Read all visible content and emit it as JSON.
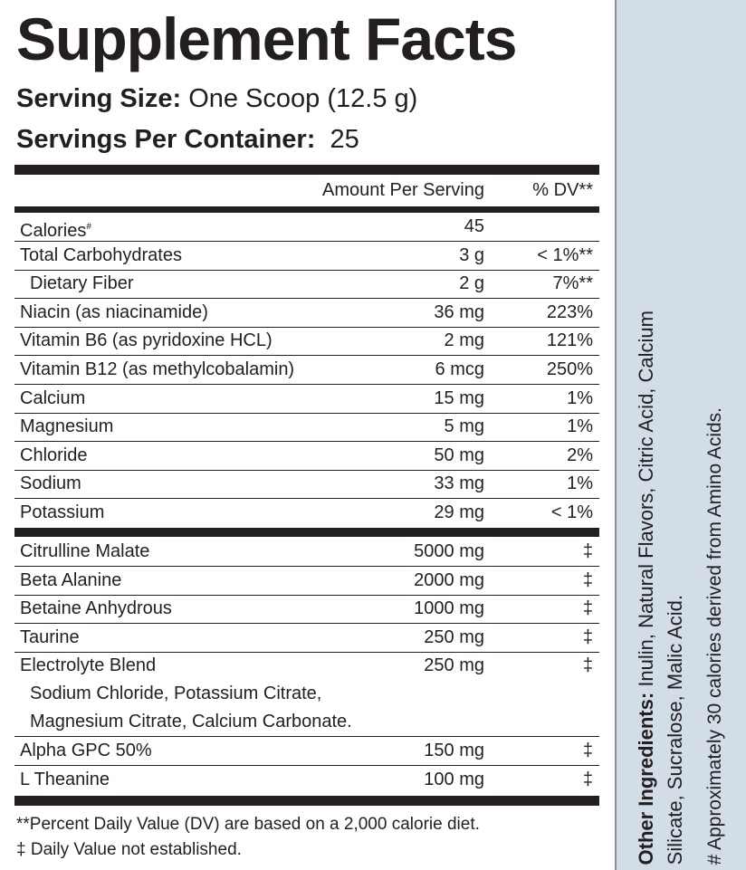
{
  "title": "Supplement Facts",
  "serving_size": {
    "label": "Serving Size:",
    "value": "One Scoop (12.5 g)"
  },
  "servings_per_container": {
    "label": "Servings Per Container:",
    "value": "25"
  },
  "header": {
    "amount": "Amount Per Serving",
    "dv": "% DV**"
  },
  "nutrients": [
    {
      "name": "Calories",
      "mark": "#",
      "amount": "45",
      "dv": ""
    },
    {
      "name": "Total Carbohydrates",
      "amount": "3 g",
      "dv": "< 1%**"
    },
    {
      "name": "Dietary Fiber",
      "amount": "2 g",
      "dv": "7%**"
    },
    {
      "name": "Niacin (as niacinamide)",
      "amount": "36 mg",
      "dv": "223%"
    },
    {
      "name": "Vitamin B6 (as pyridoxine HCL)",
      "amount": "2 mg",
      "dv": "121%"
    },
    {
      "name": "Vitamin B12 (as methylcobalamin)",
      "amount": "6 mcg",
      "dv": "250%"
    },
    {
      "name": "Calcium",
      "amount": "15 mg",
      "dv": "1%"
    },
    {
      "name": "Magnesium",
      "amount": "5 mg",
      "dv": "1%"
    },
    {
      "name": "Chloride",
      "amount": "50 mg",
      "dv": "2%"
    },
    {
      "name": "Sodium",
      "amount": "33 mg",
      "dv": "1%"
    },
    {
      "name": "Potassium",
      "amount": "29 mg",
      "dv": "< 1%"
    }
  ],
  "ingredients": [
    {
      "name": "Citrulline Malate",
      "amount": "5000 mg",
      "dv": "‡"
    },
    {
      "name": "Beta Alanine",
      "amount": "2000 mg",
      "dv": "‡"
    },
    {
      "name": "Betaine Anhydrous",
      "amount": "1000 mg",
      "dv": "‡"
    },
    {
      "name": "Taurine",
      "amount": "250 mg",
      "dv": "‡"
    },
    {
      "name": "Electrolyte Blend",
      "amount": "250 mg",
      "dv": "‡",
      "sub": [
        "Sodium Chloride, Potassium Citrate,",
        "Magnesium Citrate, Calcium Carbonate."
      ]
    },
    {
      "name": "Alpha GPC 50%",
      "amount": "150 mg",
      "dv": "‡"
    },
    {
      "name": "L Theanine",
      "amount": "100 mg",
      "dv": "‡"
    }
  ],
  "footnotes": [
    "**Percent Daily Value (DV) are based on a 2,000 calorie diet.",
    "‡ Daily Value not established."
  ],
  "other_ingredients": {
    "label": "Other Ingredients:",
    "line1": " Inulin, Natural Flavors, Citric Acid, Calcium",
    "line2": "Silicate,  Sucralose, Malic Acid."
  },
  "calorie_note": "# Approximately 30 calories derived from Amino Acids.",
  "colors": {
    "side_panel": "#d2dde8",
    "text": "#231f20"
  }
}
